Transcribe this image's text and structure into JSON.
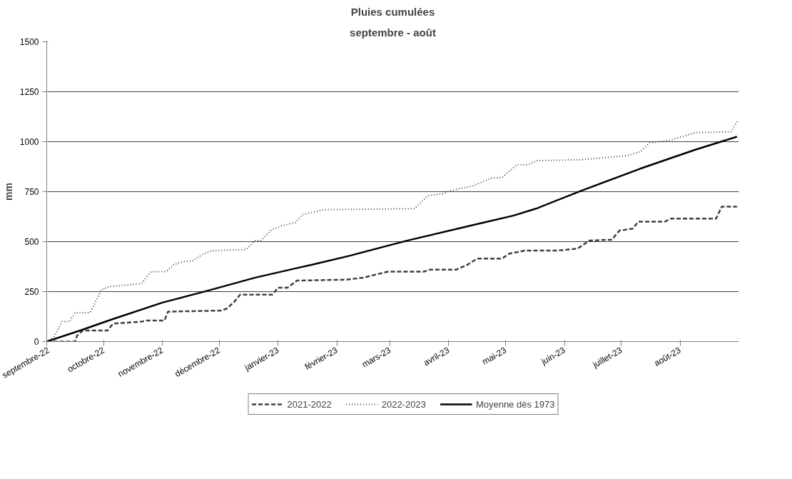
{
  "chart_data": {
    "type": "line",
    "title": "Pluies cumulées",
    "subtitle": "septembre - août",
    "ylabel": "mm",
    "xlim": [
      "2022-09-01",
      "2023-09-01"
    ],
    "xticks": [
      {
        "value": "2022-09-01",
        "label": "septembre-22"
      },
      {
        "value": "2022-10-01",
        "label": "octobre-22"
      },
      {
        "value": "2022-11-01",
        "label": "novembre-22"
      },
      {
        "value": "2022-12-01",
        "label": "décembre-22"
      },
      {
        "value": "2023-01-01",
        "label": "janvier-23"
      },
      {
        "value": "2023-02-01",
        "label": "février-23"
      },
      {
        "value": "2023-03-01",
        "label": "mars-23"
      },
      {
        "value": "2023-04-01",
        "label": "avril-23"
      },
      {
        "value": "2023-05-01",
        "label": "mai-23"
      },
      {
        "value": "2023-06-01",
        "label": "juin-23"
      },
      {
        "value": "2023-07-01",
        "label": "juillet-23"
      },
      {
        "value": "2023-08-01",
        "label": "août-23"
      }
    ],
    "ylim": [
      0,
      1500
    ],
    "yticks": [
      0,
      250,
      500,
      750,
      1000,
      1250,
      1500
    ],
    "grid": "y",
    "legend": "bottom",
    "marker": "none",
    "series": [
      {
        "name": "2021-2022",
        "color": "#404040",
        "line_style": "dashed",
        "x": [
          "2022-09-01",
          "2022-09-16",
          "2022-09-17",
          "2022-09-20",
          "2022-10-03",
          "2022-10-06",
          "2022-10-21",
          "2022-10-24",
          "2022-11-02",
          "2022-11-04",
          "2022-12-02",
          "2022-12-05",
          "2022-12-09",
          "2022-12-12",
          "2022-12-29",
          "2023-01-01",
          "2023-01-06",
          "2023-01-11",
          "2023-02-06",
          "2023-02-15",
          "2023-02-28",
          "2023-03-19",
          "2023-03-22",
          "2023-04-05",
          "2023-04-11",
          "2023-04-16",
          "2023-04-29",
          "2023-05-03",
          "2023-05-11",
          "2023-05-28",
          "2023-06-08",
          "2023-06-14",
          "2023-06-26",
          "2023-06-30",
          "2023-07-07",
          "2023-07-10",
          "2023-07-24",
          "2023-07-27",
          "2023-08-20",
          "2023-08-23",
          "2023-08-31"
        ],
        "values": [
          0,
          0,
          30,
          55,
          55,
          90,
          100,
          105,
          105,
          150,
          155,
          165,
          200,
          235,
          235,
          270,
          270,
          305,
          310,
          320,
          350,
          350,
          360,
          360,
          385,
          415,
          415,
          440,
          455,
          455,
          465,
          505,
          510,
          555,
          565,
          600,
          600,
          615,
          615,
          675,
          675
        ]
      },
      {
        "name": "2022-2023",
        "color": "#404040",
        "line_style": "dotted",
        "x": [
          "2022-09-01",
          "2022-09-05",
          "2022-09-09",
          "2022-09-13",
          "2022-09-16",
          "2022-09-24",
          "2022-09-27",
          "2022-09-30",
          "2022-10-04",
          "2022-10-21",
          "2022-10-26",
          "2022-11-03",
          "2022-11-07",
          "2022-11-12",
          "2022-11-17",
          "2022-11-22",
          "2022-11-27",
          "2022-12-15",
          "2022-12-20",
          "2022-12-23",
          "2022-12-28",
          "2023-01-03",
          "2023-01-10",
          "2023-01-14",
          "2023-01-25",
          "2023-03-14",
          "2023-03-21",
          "2023-03-29",
          "2023-04-02",
          "2023-04-14",
          "2023-04-24",
          "2023-04-29",
          "2023-05-07",
          "2023-05-13",
          "2023-05-17",
          "2023-06-10",
          "2023-07-04",
          "2023-07-11",
          "2023-07-16",
          "2023-07-26",
          "2023-08-09",
          "2023-08-28",
          "2023-08-31"
        ],
        "values": [
          0,
          25,
          100,
          100,
          145,
          145,
          205,
          260,
          275,
          290,
          350,
          350,
          385,
          400,
          405,
          435,
          455,
          460,
          505,
          505,
          555,
          580,
          595,
          635,
          660,
          665,
          730,
          740,
          755,
          780,
          820,
          820,
          885,
          885,
          905,
          910,
          930,
          950,
          995,
          1005,
          1045,
          1050,
          1100
        ]
      },
      {
        "name": "Moyenne dès 1973",
        "color": "#000000",
        "line_style": "solid",
        "x": [
          "2022-09-01",
          "2022-09-20",
          "2022-10-05",
          "2022-11-01",
          "2022-11-25",
          "2022-12-20",
          "2023-01-12",
          "2023-01-19",
          "2023-02-08",
          "2023-03-10",
          "2023-04-17",
          "2023-05-05",
          "2023-05-17",
          "2023-06-10",
          "2023-07-11",
          "2023-08-09",
          "2023-08-31"
        ],
        "values": [
          0,
          60,
          110,
          195,
          255,
          320,
          370,
          385,
          430,
          505,
          590,
          630,
          665,
          755,
          865,
          960,
          1025
        ]
      }
    ]
  }
}
